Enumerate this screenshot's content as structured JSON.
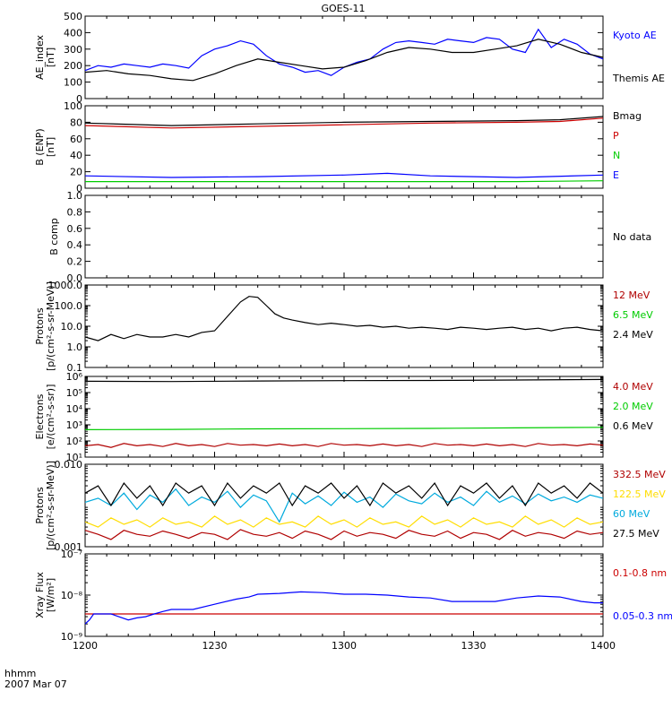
{
  "title": "GOES-11",
  "time_axis": {
    "label_line1": "hhmm",
    "label_line2": "2007 Mar 07",
    "ticks": [
      "1200",
      "1230",
      "1300",
      "1330",
      "1400"
    ],
    "range_minutes": [
      0,
      120
    ]
  },
  "colors": {
    "black": "#000000",
    "blue": "#0000ff",
    "red": "#cc0000",
    "darkred": "#b00000",
    "green": "#00cc00",
    "cyan": "#00aadd",
    "yellow": "#ffdd00"
  },
  "chart_data": [
    {
      "type": "line",
      "id": "ae",
      "ylabel_lines": [
        "AE_index",
        "[nT]"
      ],
      "scale": "linear",
      "ylim": [
        0,
        500
      ],
      "yticks": [
        "0",
        "100",
        "200",
        "300",
        "400",
        "500"
      ],
      "series": [
        {
          "name": "Kyoto AE",
          "color": "#0000ff",
          "x": [
            0,
            3,
            6,
            9,
            12,
            15,
            18,
            21,
            24,
            27,
            30,
            33,
            36,
            39,
            42,
            45,
            48,
            51,
            54,
            57,
            60,
            63,
            66,
            69,
            72,
            75,
            78,
            81,
            84,
            87,
            90,
            93,
            96,
            99,
            102,
            105,
            108,
            111,
            114,
            117,
            120
          ],
          "y": [
            170,
            200,
            190,
            210,
            200,
            190,
            210,
            200,
            185,
            260,
            300,
            320,
            350,
            330,
            260,
            210,
            190,
            160,
            170,
            140,
            190,
            220,
            240,
            300,
            340,
            350,
            340,
            330,
            360,
            350,
            340,
            370,
            360,
            300,
            280,
            420,
            310,
            360,
            330,
            270,
            240
          ]
        },
        {
          "name": "Themis AE",
          "color": "#000000",
          "x": [
            0,
            5,
            10,
            15,
            20,
            25,
            30,
            35,
            40,
            45,
            50,
            55,
            60,
            65,
            70,
            75,
            80,
            85,
            90,
            95,
            100,
            105,
            110,
            115,
            120
          ],
          "y": [
            160,
            170,
            150,
            140,
            120,
            110,
            150,
            200,
            240,
            220,
            200,
            180,
            190,
            230,
            280,
            310,
            300,
            280,
            280,
            300,
            320,
            360,
            330,
            280,
            250
          ]
        }
      ]
    },
    {
      "type": "line",
      "id": "bfield",
      "ylabel_lines": [
        "B (ENP)",
        "[nT]"
      ],
      "scale": "linear",
      "ylim": [
        0,
        100
      ],
      "yticks": [
        "0",
        "20",
        "40",
        "60",
        "80",
        "100"
      ],
      "series": [
        {
          "name": "Bmag",
          "color": "#000000",
          "x": [
            0,
            20,
            40,
            60,
            80,
            100,
            110,
            120
          ],
          "y": [
            79,
            76,
            78,
            80,
            81,
            82,
            83,
            87
          ]
        },
        {
          "name": "P",
          "color": "#cc0000",
          "x": [
            0,
            20,
            40,
            60,
            80,
            100,
            110,
            120
          ],
          "y": [
            76,
            73,
            75,
            77,
            79,
            80,
            81,
            85
          ]
        },
        {
          "name": "N",
          "color": "#00cc00",
          "x": [
            0,
            20,
            40,
            60,
            80,
            100,
            120
          ],
          "y": [
            8,
            8,
            8,
            8,
            8,
            8,
            9
          ]
        },
        {
          "name": "E",
          "color": "#0000ff",
          "x": [
            0,
            20,
            40,
            60,
            70,
            80,
            100,
            120
          ],
          "y": [
            15,
            13,
            14,
            16,
            18,
            15,
            13,
            16
          ]
        }
      ]
    },
    {
      "type": "line",
      "id": "bcomp",
      "ylabel_lines": [
        "B comp"
      ],
      "scale": "linear",
      "ylim": [
        0,
        1
      ],
      "yticks": [
        "0.0",
        "0.2",
        "0.4",
        "0.6",
        "0.8",
        "1.0"
      ],
      "no_data_label": "No data",
      "series": []
    },
    {
      "type": "line",
      "id": "protons_low",
      "ylabel_lines": [
        "Protons",
        "[p/(cm²-s-sr-MeV)]"
      ],
      "scale": "log",
      "ylim": [
        0.1,
        1000
      ],
      "yticks": [
        "0.1",
        "1.0",
        "10.0",
        "100.0",
        "1000.0"
      ],
      "series": [
        {
          "name": "12 MeV",
          "color": "#b00000",
          "x": [],
          "y": []
        },
        {
          "name": "6.5 MeV",
          "color": "#00cc00",
          "x": [],
          "y": []
        },
        {
          "name": "2.4 MeV",
          "color": "#000000",
          "x": [
            0,
            3,
            6,
            9,
            12,
            15,
            18,
            21,
            24,
            27,
            30,
            33,
            36,
            38,
            40,
            42,
            44,
            46,
            48,
            51,
            54,
            57,
            60,
            63,
            66,
            69,
            72,
            75,
            78,
            81,
            84,
            87,
            90,
            93,
            96,
            99,
            102,
            105,
            108,
            111,
            114,
            117,
            120
          ],
          "y": [
            3,
            2,
            4,
            2.5,
            4,
            3,
            3,
            4,
            3,
            5,
            6,
            30,
            150,
            280,
            250,
            100,
            40,
            25,
            20,
            15,
            12,
            14,
            12,
            10,
            11,
            9,
            10,
            8,
            9,
            8,
            7,
            9,
            8,
            7,
            8,
            9,
            7,
            8,
            6,
            8,
            9,
            7,
            6
          ]
        }
      ]
    },
    {
      "type": "line",
      "id": "electrons",
      "ylabel_lines": [
        "Electrons",
        "[e/(cm²-s-sr)]"
      ],
      "scale": "log",
      "ylim": [
        10,
        1000000
      ],
      "yticks": [
        "10¹",
        "10²",
        "10³",
        "10⁴",
        "10⁵",
        "10⁶"
      ],
      "series": [
        {
          "name": "4.0 MeV",
          "color": "#b00000",
          "x": [
            0,
            3,
            6,
            9,
            12,
            15,
            18,
            21,
            24,
            27,
            30,
            33,
            36,
            39,
            42,
            45,
            48,
            51,
            54,
            57,
            60,
            63,
            66,
            69,
            72,
            75,
            78,
            81,
            84,
            87,
            90,
            93,
            96,
            99,
            102,
            105,
            108,
            111,
            114,
            117,
            120
          ],
          "y": [
            50,
            60,
            40,
            70,
            50,
            60,
            45,
            70,
            50,
            60,
            45,
            70,
            55,
            60,
            50,
            65,
            50,
            60,
            45,
            70,
            55,
            60,
            50,
            65,
            50,
            60,
            45,
            70,
            55,
            60,
            50,
            65,
            50,
            60,
            45,
            70,
            55,
            60,
            50,
            65,
            55
          ]
        },
        {
          "name": "2.0 MeV",
          "color": "#00cc00",
          "x": [
            0,
            20,
            40,
            60,
            80,
            100,
            120
          ],
          "y": [
            500,
            520,
            560,
            580,
            600,
            650,
            700
          ]
        },
        {
          "name": "0.6 MeV",
          "color": "#000000",
          "x": [
            0,
            20,
            40,
            60,
            80,
            100,
            120
          ],
          "y": [
            500000,
            480000,
            520000,
            550000,
            560000,
            600000,
            650000
          ]
        }
      ]
    },
    {
      "type": "line",
      "id": "protons_high",
      "ylabel_lines": [
        "Protons",
        "[p/(cm²-s-sr-MeV)]"
      ],
      "scale": "log",
      "ylim": [
        0.001,
        0.1
      ],
      "yticks": [
        "0.001",
        "0.010"
      ],
      "series": [
        {
          "name": "332.5 MeV",
          "color": "#b00000",
          "x": [
            0,
            3,
            6,
            9,
            12,
            15,
            18,
            21,
            24,
            27,
            30,
            33,
            36,
            39,
            42,
            45,
            48,
            51,
            54,
            57,
            60,
            63,
            66,
            69,
            72,
            75,
            78,
            81,
            84,
            87,
            90,
            93,
            96,
            99,
            102,
            105,
            108,
            111,
            114,
            117,
            120
          ],
          "y": [
            0.0025,
            0.002,
            0.0015,
            0.0025,
            0.002,
            0.0018,
            0.0024,
            0.002,
            0.0016,
            0.0022,
            0.002,
            0.0015,
            0.0026,
            0.002,
            0.0018,
            0.0022,
            0.0016,
            0.0024,
            0.002,
            0.0015,
            0.0024,
            0.0018,
            0.0022,
            0.002,
            0.0016,
            0.0025,
            0.002,
            0.0018,
            0.0024,
            0.0016,
            0.0022,
            0.002,
            0.0015,
            0.0025,
            0.0018,
            0.0022,
            0.002,
            0.0016,
            0.0024,
            0.002,
            0.0022
          ]
        },
        {
          "name": "122.5 MeV",
          "color": "#ffdd00",
          "x": [
            0,
            3,
            6,
            9,
            12,
            15,
            18,
            21,
            24,
            27,
            30,
            33,
            36,
            39,
            42,
            45,
            48,
            51,
            54,
            57,
            60,
            63,
            66,
            69,
            72,
            75,
            78,
            81,
            84,
            87,
            90,
            93,
            96,
            99,
            102,
            105,
            108,
            111,
            114,
            117,
            120
          ],
          "y": [
            0.004,
            0.003,
            0.005,
            0.0035,
            0.0045,
            0.003,
            0.005,
            0.0035,
            0.004,
            0.003,
            0.0055,
            0.0035,
            0.0045,
            0.003,
            0.005,
            0.0035,
            0.004,
            0.003,
            0.0055,
            0.0035,
            0.0045,
            0.003,
            0.005,
            0.0035,
            0.004,
            0.003,
            0.0055,
            0.0035,
            0.0045,
            0.003,
            0.005,
            0.0035,
            0.004,
            0.003,
            0.0055,
            0.0035,
            0.0045,
            0.003,
            0.005,
            0.0035,
            0.004
          ]
        },
        {
          "name": "60 MeV",
          "color": "#00aadd",
          "x": [
            0,
            3,
            6,
            9,
            12,
            15,
            18,
            21,
            24,
            27,
            30,
            33,
            36,
            39,
            42,
            45,
            48,
            51,
            54,
            57,
            60,
            63,
            66,
            69,
            72,
            75,
            78,
            81,
            84,
            87,
            90,
            93,
            96,
            99,
            102,
            105,
            108,
            111,
            114,
            117,
            120
          ],
          "y": [
            0.012,
            0.015,
            0.01,
            0.02,
            0.008,
            0.018,
            0.012,
            0.025,
            0.01,
            0.016,
            0.012,
            0.022,
            0.009,
            0.018,
            0.013,
            0.004,
            0.02,
            0.011,
            0.017,
            0.01,
            0.021,
            0.012,
            0.016,
            0.009,
            0.019,
            0.013,
            0.011,
            0.02,
            0.012,
            0.016,
            0.01,
            0.022,
            0.012,
            0.017,
            0.011,
            0.019,
            0.013,
            0.016,
            0.012,
            0.018,
            0.015
          ]
        },
        {
          "name": "27.5 MeV",
          "color": "#000000",
          "x": [
            0,
            3,
            6,
            9,
            12,
            15,
            18,
            21,
            24,
            27,
            30,
            33,
            36,
            39,
            42,
            45,
            48,
            51,
            54,
            57,
            60,
            63,
            66,
            69,
            72,
            75,
            78,
            81,
            84,
            87,
            90,
            93,
            96,
            99,
            102,
            105,
            108,
            111,
            114,
            117,
            120
          ],
          "y": [
            0.02,
            0.03,
            0.01,
            0.035,
            0.015,
            0.03,
            0.01,
            0.035,
            0.02,
            0.03,
            0.01,
            0.035,
            0.015,
            0.03,
            0.02,
            0.035,
            0.01,
            0.03,
            0.02,
            0.035,
            0.015,
            0.03,
            0.01,
            0.035,
            0.02,
            0.03,
            0.015,
            0.035,
            0.01,
            0.03,
            0.02,
            0.035,
            0.015,
            0.03,
            0.01,
            0.035,
            0.02,
            0.03,
            0.015,
            0.035,
            0.02
          ]
        }
      ]
    },
    {
      "type": "line",
      "id": "xray",
      "ylabel_lines": [
        "Xray Flux",
        "[W/m²]"
      ],
      "scale": "log",
      "ylim": [
        1e-09,
        1e-07
      ],
      "yticks": [
        "10⁻⁹",
        "10⁻⁸",
        "10⁻⁷"
      ],
      "series": [
        {
          "name": "0.1-0.8 nm",
          "color": "#cc0000",
          "x": [
            0,
            120
          ],
          "y": [
            3.5e-09,
            3.5e-09
          ]
        },
        {
          "name": "0.05-0.3 nm",
          "color": "#0000ff",
          "x": [
            0,
            1,
            2,
            6,
            10,
            12,
            14,
            16,
            18,
            20,
            25,
            30,
            35,
            38,
            40,
            45,
            50,
            55,
            60,
            65,
            70,
            75,
            80,
            85,
            90,
            95,
            100,
            105,
            110,
            115,
            118,
            120
          ],
          "y": [
            2e-09,
            2.5e-09,
            3.5e-09,
            3.5e-09,
            2.5e-09,
            2.8e-09,
            3e-09,
            3.5e-09,
            4e-09,
            4.5e-09,
            4.5e-09,
            6e-09,
            8e-09,
            9e-09,
            1.05e-08,
            1.1e-08,
            1.2e-08,
            1.15e-08,
            1.05e-08,
            1.05e-08,
            1e-08,
            9e-09,
            8.5e-09,
            7e-09,
            7e-09,
            7e-09,
            8.5e-09,
            9.5e-09,
            9e-09,
            7e-09,
            6.5e-09,
            6.5e-09
          ]
        }
      ]
    }
  ]
}
